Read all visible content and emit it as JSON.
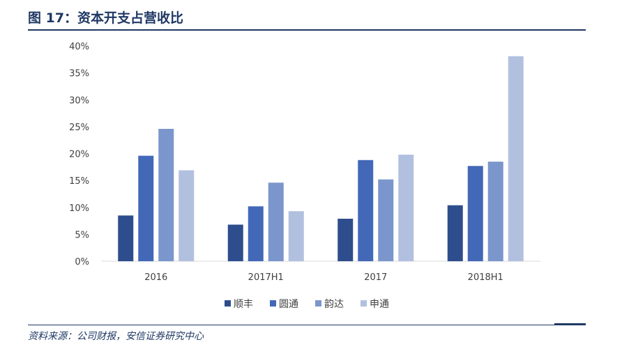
{
  "header": {
    "title": "图 17：资本开支占营收比"
  },
  "footer": {
    "source": "资料来源：公司财报，安信证券研究中心"
  },
  "chart_data": {
    "type": "bar",
    "title": "",
    "xlabel": "",
    "ylabel": "",
    "categories": [
      "2016",
      "2017H1",
      "2017",
      "2018H1"
    ],
    "ylim": [
      0,
      0.4
    ],
    "yticks": [
      0,
      0.05,
      0.1,
      0.15,
      0.2,
      0.25,
      0.3,
      0.35,
      0.4
    ],
    "ytick_labels": [
      "0%",
      "5%",
      "10%",
      "15%",
      "20%",
      "25%",
      "30%",
      "35%",
      "40%"
    ],
    "grid": false,
    "legend_position": "bottom",
    "series": [
      {
        "name": "顺丰",
        "color": "#2e4d8c",
        "values": [
          0.085,
          0.068,
          0.079,
          0.104
        ]
      },
      {
        "name": "圆通",
        "color": "#4368b8",
        "values": [
          0.196,
          0.102,
          0.188,
          0.177
        ]
      },
      {
        "name": "韵达",
        "color": "#7b96cc",
        "values": [
          0.246,
          0.146,
          0.152,
          0.185
        ]
      },
      {
        "name": "申通",
        "color": "#b2c0e0",
        "values": [
          0.169,
          0.093,
          0.198,
          0.381
        ]
      }
    ]
  }
}
